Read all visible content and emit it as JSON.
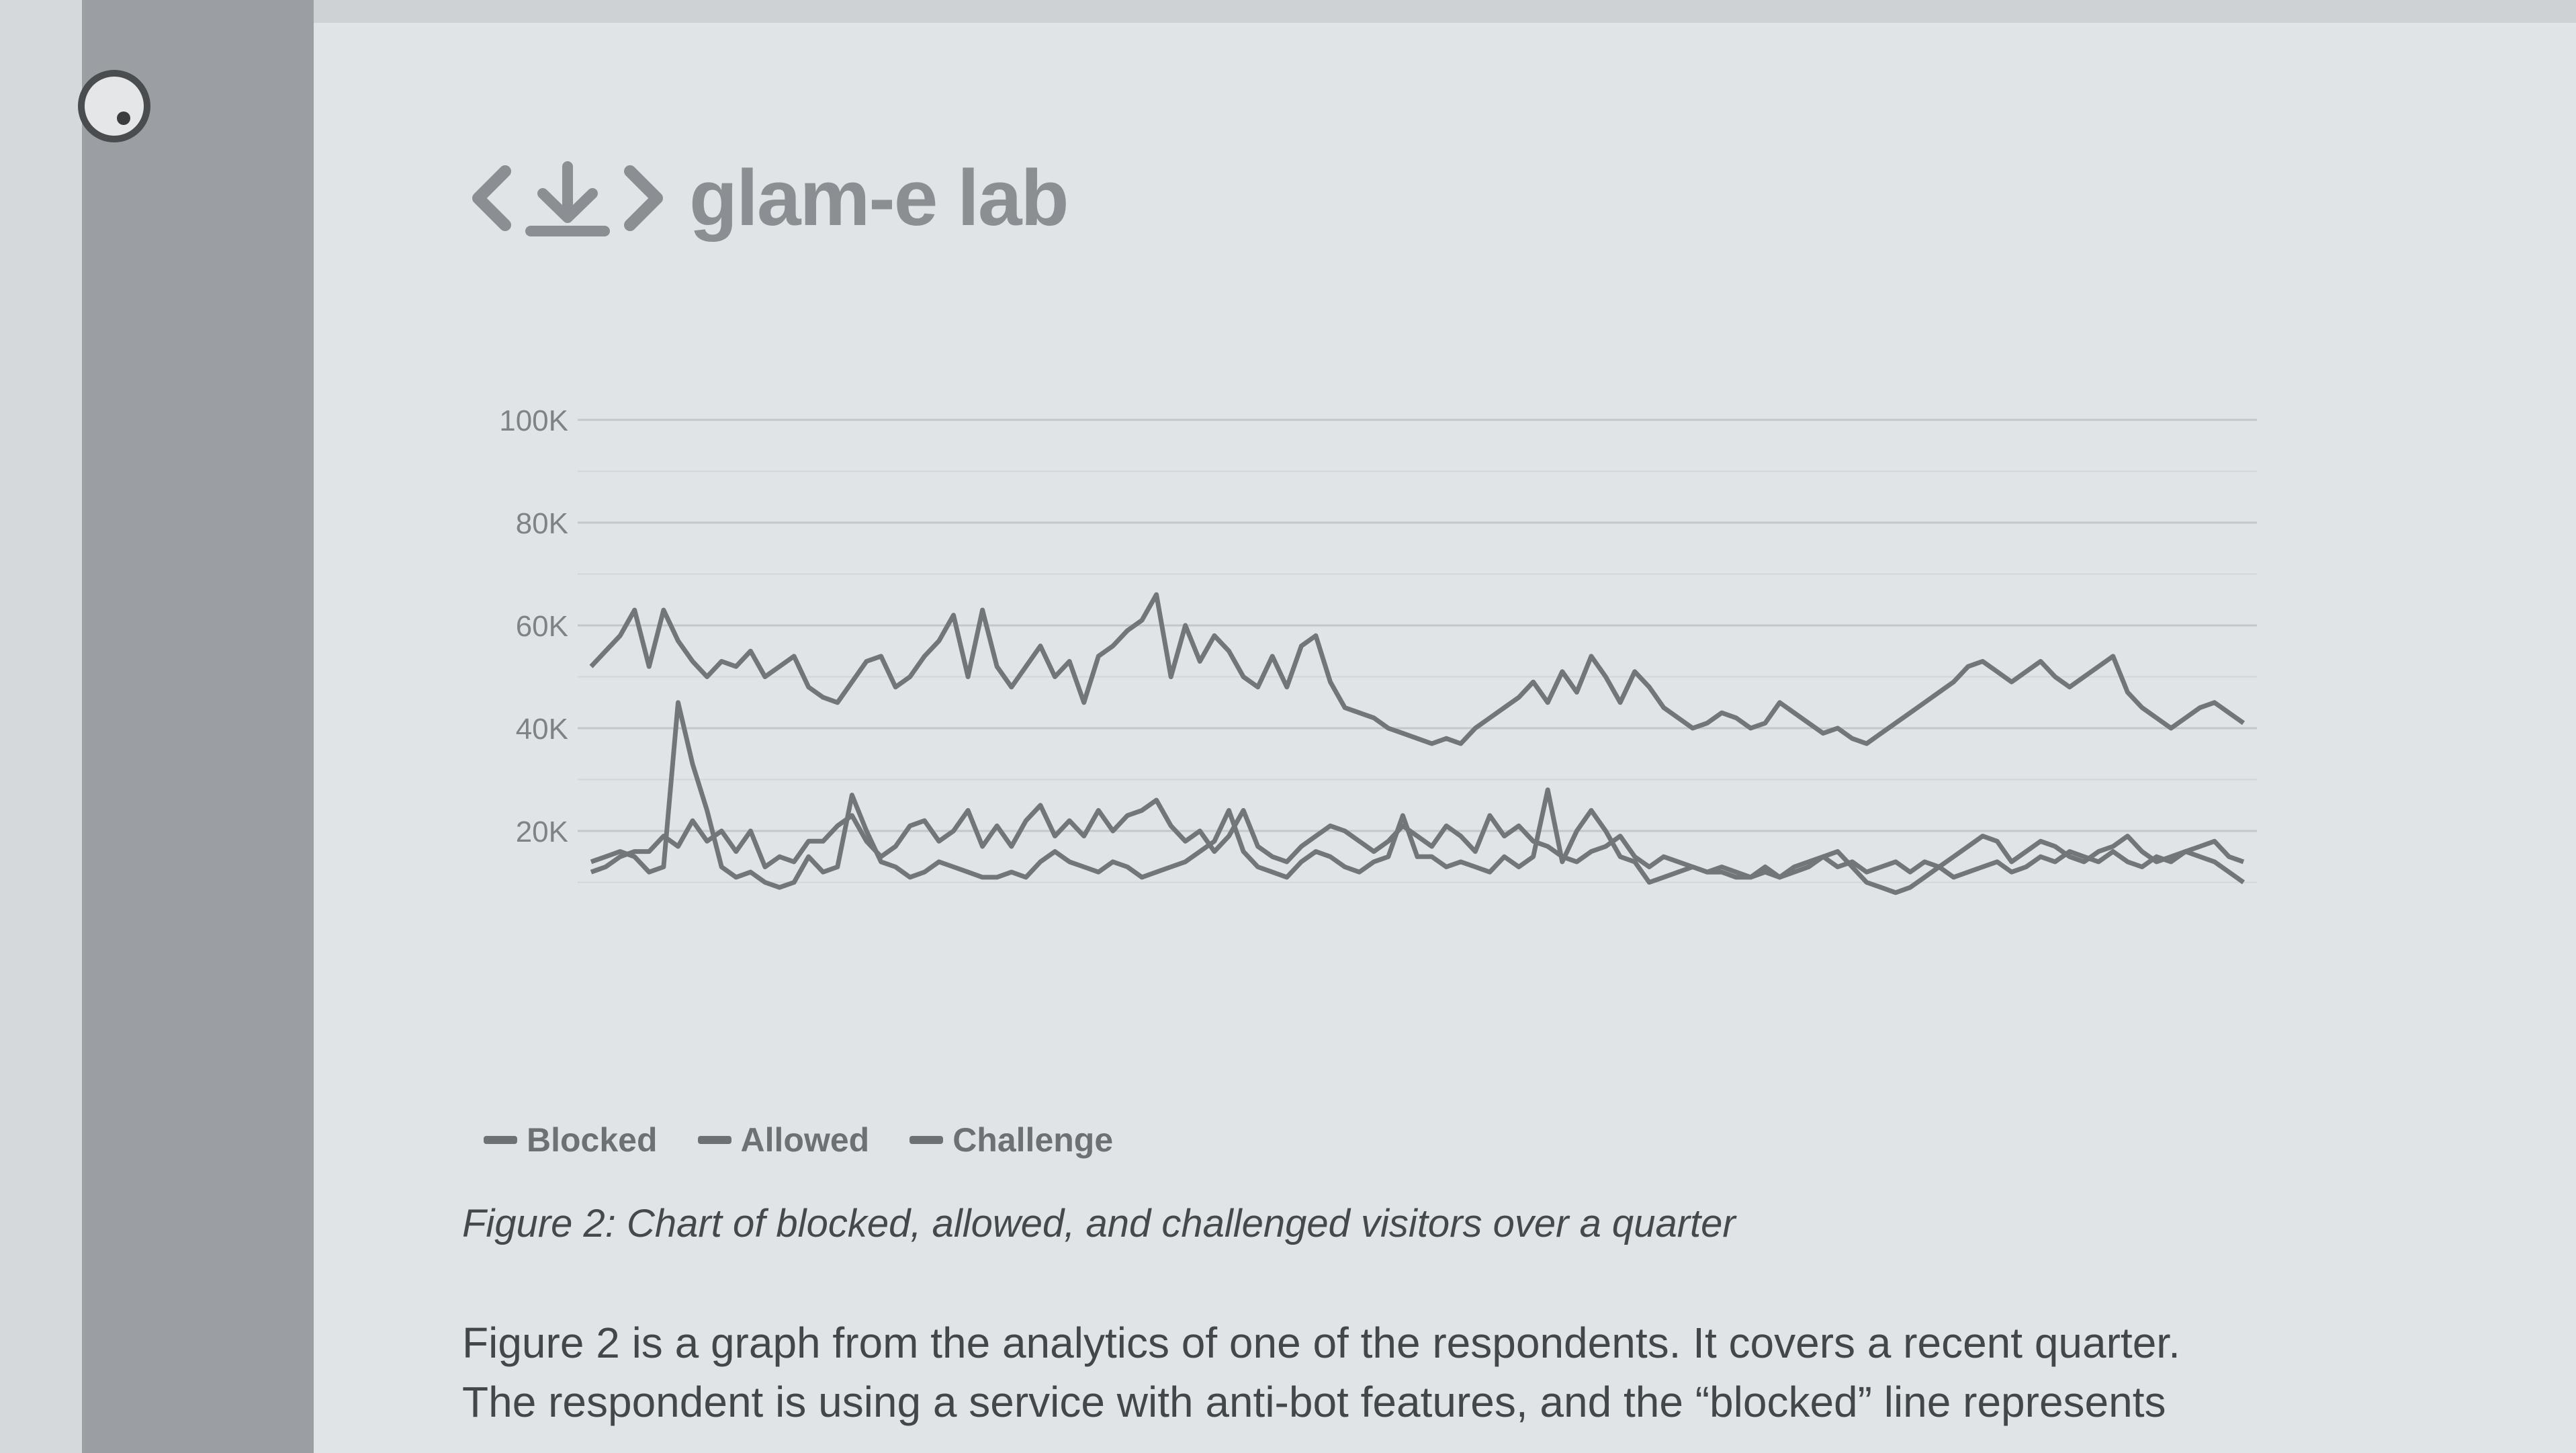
{
  "brand": {
    "name": "glam-e lab",
    "logo_icon": "code-download-icon"
  },
  "menu": {
    "icon": "menu-dot-icon"
  },
  "colors": {
    "sidebar": "#9b9fa3",
    "page": "#e1e4e6",
    "line": "#727679",
    "text": "#43464a"
  },
  "chart_data": {
    "type": "line",
    "yticks": [
      "100K",
      "80K",
      "60K",
      "40K",
      "20K"
    ],
    "ylim": [
      0,
      100000
    ],
    "grid": true,
    "legend_position": "bottom-left",
    "series": [
      {
        "name": "Blocked",
        "values": [
          52000,
          55000,
          58000,
          63000,
          52000,
          63000,
          57000,
          53000,
          50000,
          53000,
          52000,
          55000,
          50000,
          52000,
          54000,
          48000,
          46000,
          45000,
          49000,
          53000,
          54000,
          48000,
          50000,
          54000,
          57000,
          62000,
          50000,
          63000,
          52000,
          48000,
          52000,
          56000,
          50000,
          53000,
          45000,
          54000,
          56000,
          59000,
          61000,
          66000,
          50000,
          60000,
          53000,
          58000,
          55000,
          50000,
          48000,
          54000,
          48000,
          56000,
          58000,
          49000,
          44000,
          43000,
          42000,
          40000,
          39000,
          38000,
          37000,
          38000,
          37000,
          40000,
          42000,
          44000,
          46000,
          49000,
          45000,
          51000,
          47000,
          54000,
          50000,
          45000,
          51000,
          48000,
          44000,
          42000,
          40000,
          41000,
          43000,
          42000,
          40000,
          41000,
          45000,
          43000,
          41000,
          39000,
          40000,
          38000,
          37000,
          39000,
          41000,
          43000,
          45000,
          47000,
          49000,
          52000,
          53000,
          51000,
          49000,
          51000,
          53000,
          50000,
          48000,
          50000,
          52000,
          54000,
          47000,
          44000,
          42000,
          40000,
          42000,
          44000,
          45000,
          43000,
          41000
        ]
      },
      {
        "name": "Allowed",
        "values": [
          14000,
          15000,
          16000,
          15000,
          12000,
          13000,
          45000,
          33000,
          24000,
          13000,
          11000,
          12000,
          10000,
          9000,
          10000,
          15000,
          12000,
          13000,
          27000,
          20000,
          14000,
          13000,
          11000,
          12000,
          14000,
          13000,
          12000,
          11000,
          11000,
          12000,
          11000,
          14000,
          16000,
          14000,
          13000,
          12000,
          14000,
          13000,
          11000,
          12000,
          13000,
          14000,
          16000,
          18000,
          24000,
          16000,
          13000,
          12000,
          11000,
          14000,
          16000,
          15000,
          13000,
          12000,
          14000,
          15000,
          23000,
          15000,
          15000,
          13000,
          14000,
          13000,
          12000,
          15000,
          13000,
          15000,
          28000,
          14000,
          20000,
          24000,
          20000,
          15000,
          14000,
          10000,
          11000,
          12000,
          13000,
          12000,
          12000,
          11000,
          11000,
          12000,
          11000,
          13000,
          14000,
          15000,
          16000,
          13000,
          10000,
          9000,
          8000,
          9000,
          11000,
          13000,
          15000,
          17000,
          19000,
          18000,
          14000,
          16000,
          18000,
          17000,
          15000,
          14000,
          16000,
          17000,
          19000,
          16000,
          14000,
          15000,
          16000,
          15000,
          14000,
          12000,
          10000
        ]
      },
      {
        "name": "Challenge",
        "values": [
          12000,
          13000,
          15000,
          16000,
          16000,
          19000,
          17000,
          22000,
          18000,
          20000,
          16000,
          20000,
          13000,
          15000,
          14000,
          18000,
          18000,
          21000,
          23000,
          18000,
          15000,
          17000,
          21000,
          22000,
          18000,
          20000,
          24000,
          17000,
          21000,
          17000,
          22000,
          25000,
          19000,
          22000,
          19000,
          24000,
          20000,
          23000,
          24000,
          26000,
          21000,
          18000,
          20000,
          16000,
          19000,
          24000,
          17000,
          15000,
          14000,
          17000,
          19000,
          21000,
          20000,
          18000,
          16000,
          18000,
          21000,
          19000,
          17000,
          21000,
          19000,
          16000,
          23000,
          19000,
          21000,
          18000,
          17000,
          15000,
          14000,
          16000,
          17000,
          19000,
          15000,
          13000,
          15000,
          14000,
          13000,
          12000,
          13000,
          12000,
          11000,
          13000,
          11000,
          12000,
          13000,
          15000,
          13000,
          14000,
          12000,
          13000,
          14000,
          12000,
          14000,
          13000,
          11000,
          12000,
          13000,
          14000,
          12000,
          13000,
          15000,
          14000,
          16000,
          15000,
          14000,
          16000,
          14000,
          13000,
          15000,
          14000,
          16000,
          17000,
          18000,
          15000,
          14000
        ]
      }
    ]
  },
  "caption": "Figure 2: Chart of blocked, allowed, and challenged visitors over a quarter",
  "body": [
    "Figure 2 is a graph from the analytics of one of the respondents. It covers a recent quarter.",
    "The respondent is using a service with anti-bot features, and the “blocked” line represents"
  ]
}
